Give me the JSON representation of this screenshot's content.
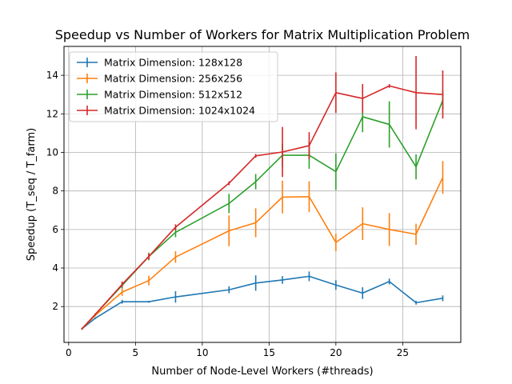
{
  "chart_data": {
    "type": "line",
    "title": "Speedup vs Number of Workers for Matrix Multiplication Problem",
    "xlabel": "Number of Node-Level Workers (#threads)",
    "ylabel": "Speedup (T_seq / T_farm)",
    "xlim": [
      -0.35,
      29.35
    ],
    "ylim": [
      0.14,
      15.5
    ],
    "xticks": [
      0,
      5,
      10,
      15,
      20,
      25
    ],
    "yticks": [
      2,
      4,
      6,
      8,
      10,
      12,
      14
    ],
    "grid": true,
    "legend_position": "top-left",
    "x": [
      1,
      2,
      4,
      6,
      8,
      12,
      14,
      16,
      18,
      20,
      22,
      24,
      26,
      28
    ],
    "series": [
      {
        "name": "Matrix Dimension: 128x128",
        "color": "#1f77b4",
        "values": [
          0.85,
          1.4,
          2.25,
          2.25,
          2.5,
          2.87,
          3.22,
          3.38,
          3.57,
          3.12,
          2.7,
          3.3,
          2.2,
          2.43
        ],
        "errors": [
          0.05,
          0.05,
          0.1,
          0.05,
          0.3,
          0.18,
          0.4,
          0.2,
          0.25,
          0.25,
          0.3,
          0.15,
          0.1,
          0.15
        ]
      },
      {
        "name": "Matrix Dimension: 256x256",
        "color": "#ff7f0e",
        "values": [
          0.85,
          1.55,
          2.75,
          3.35,
          4.57,
          5.93,
          6.35,
          7.68,
          7.7,
          5.33,
          6.3,
          6.0,
          5.75,
          8.7
        ],
        "errors": [
          0.05,
          0.05,
          0.2,
          0.25,
          0.3,
          0.8,
          0.75,
          0.85,
          0.8,
          0.45,
          0.85,
          0.85,
          0.55,
          0.85
        ]
      },
      {
        "name": "Matrix Dimension: 512x512",
        "color": "#2ca02c",
        "values": [
          0.85,
          1.6,
          3.1,
          4.6,
          5.85,
          7.35,
          8.48,
          9.85,
          9.85,
          9.0,
          11.85,
          11.45,
          9.25,
          12.7
        ],
        "errors": [
          0.05,
          0.05,
          0.15,
          0.2,
          0.25,
          0.5,
          0.4,
          0.6,
          0.7,
          0.95,
          0.8,
          1.2,
          0.65,
          0.5
        ]
      },
      {
        "name": "Matrix Dimension: 1024x1024",
        "color": "#d62728",
        "values": [
          0.85,
          1.6,
          3.15,
          4.6,
          6.12,
          8.4,
          9.82,
          10.02,
          10.35,
          13.1,
          12.8,
          13.45,
          13.1,
          13.0
        ],
        "errors": [
          0.05,
          0.05,
          0.15,
          0.15,
          0.15,
          0.1,
          0.1,
          1.3,
          0.7,
          1.05,
          0.75,
          0.1,
          1.9,
          1.25
        ]
      }
    ]
  }
}
